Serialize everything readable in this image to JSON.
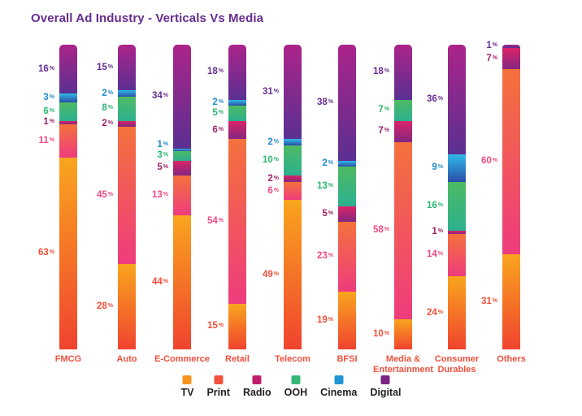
{
  "title": "Overall Ad Industry - Verticals Vs Media",
  "legend": {
    "items": [
      {
        "label": "TV",
        "color": "#F7941E"
      },
      {
        "label": "Print",
        "color": "#F0503C"
      },
      {
        "label": "Radio",
        "color": "#C11F6B"
      },
      {
        "label": "OOH",
        "color": "#39B778"
      },
      {
        "label": "Cinema",
        "color": "#2095D3"
      },
      {
        "label": "Digital",
        "color": "#7B2482"
      }
    ]
  },
  "chart_data": {
    "type": "bar",
    "subtype": "stacked-vertical-100pct",
    "title": "Overall Ad Industry - Verticals Vs Media",
    "unit": "%",
    "ylim": [
      0,
      100
    ],
    "grid": false,
    "legend_position": "bottom",
    "categories": [
      "FMCG",
      "Auto",
      "E-Commerce",
      "Retail",
      "Telecom",
      "BFSI",
      "Media & Entertainment",
      "Consumer Durables",
      "Others"
    ],
    "series": [
      {
        "name": "TV",
        "values": [
          63,
          28,
          44,
          15,
          49,
          19,
          10,
          24,
          31
        ],
        "label_color": "#F25039",
        "gradient_top": "#F9A51E",
        "gradient_bottom": "#F0432F"
      },
      {
        "name": "Print",
        "values": [
          11,
          45,
          13,
          54,
          6,
          23,
          58,
          14,
          60
        ],
        "label_color": "#EF4A80",
        "gradient_top": "#F4713C",
        "gradient_bottom": "#EE3C7D"
      },
      {
        "name": "Radio",
        "values": [
          1,
          2,
          5,
          6,
          2,
          5,
          7,
          1,
          7
        ],
        "label_color": "#9D2166",
        "gradient_top": "#DB2368",
        "gradient_bottom": "#832780"
      },
      {
        "name": "OOH",
        "values": [
          6,
          8,
          3,
          5,
          10,
          13,
          7,
          16,
          0
        ],
        "label_color": "#2BB673",
        "gradient_top": "#4EBA64",
        "gradient_bottom": "#2CB08F"
      },
      {
        "name": "Cinema",
        "values": [
          3,
          2,
          1,
          2,
          2,
          2,
          0,
          9,
          0
        ],
        "label_color": "#1F8CCC",
        "gradient_top": "#30B9E6",
        "gradient_bottom": "#2B4EA9"
      },
      {
        "name": "Digital",
        "values": [
          16,
          15,
          34,
          18,
          31,
          38,
          18,
          36,
          1
        ],
        "label_color": "#662D91",
        "gradient_top": "#AC2489",
        "gradient_bottom": "#5A3092"
      }
    ]
  }
}
